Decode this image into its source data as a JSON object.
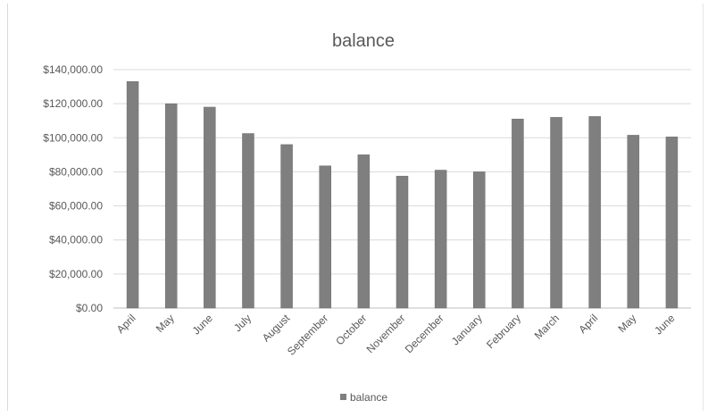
{
  "chart_data": {
    "type": "bar",
    "title": "balance",
    "categories": [
      "April",
      "May",
      "June",
      "July",
      "August",
      "September",
      "October",
      "November",
      "December",
      "January",
      "February",
      "March",
      "April",
      "May",
      "June"
    ],
    "series": [
      {
        "name": "balance",
        "values": [
          133000,
          120000,
          118000,
          102500,
          96000,
          83500,
          90000,
          77500,
          81000,
          80000,
          111000,
          112000,
          112500,
          101500,
          100500
        ],
        "color": "#7f7f7f"
      }
    ],
    "yticks": [
      "$0.00",
      "$20,000.00",
      "$40,000.00",
      "$60,000.00",
      "$80,000.00",
      "$100,000.00",
      "$120,000.00",
      "$140,000.00"
    ],
    "ylim": [
      0,
      140000
    ],
    "ystep": 20000,
    "grid": true,
    "legend": "bottom",
    "xlabel": "",
    "ylabel": ""
  }
}
